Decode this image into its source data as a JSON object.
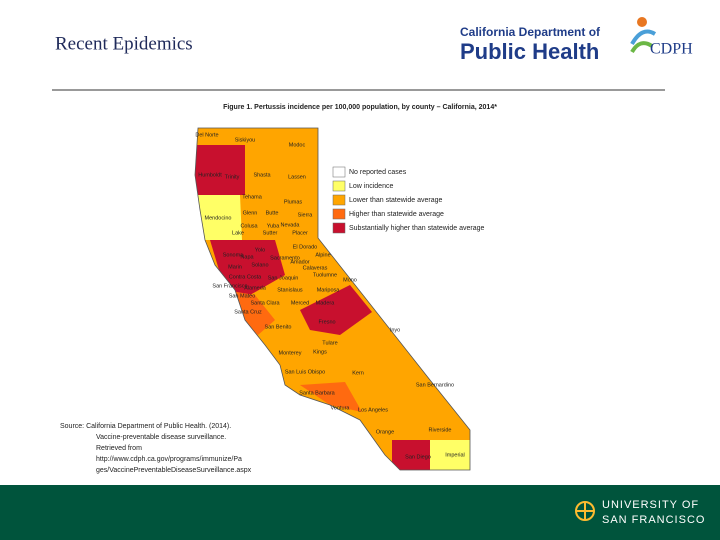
{
  "header": {
    "title": "Recent Epidemics",
    "logo_line1": "California Department of",
    "logo_line2": "Public Health",
    "logo_mark": "CDPH"
  },
  "figure": {
    "title": "Figure 1. Pertussis incidence per 100,000 population, by county – California, 2014*",
    "legend": [
      {
        "label": "No reported cases",
        "color": "#ffffff"
      },
      {
        "label": "Low incidence",
        "color": "#ffff66"
      },
      {
        "label": "Lower than statewide average",
        "color": "#ffa500"
      },
      {
        "label": "Higher than statewide average",
        "color": "#ff6a10"
      },
      {
        "label": "Substantially higher than statewide average",
        "color": "#c8102e"
      }
    ],
    "counties": [
      "Del Norte",
      "Siskiyou",
      "Modoc",
      "Humboldt",
      "Trinity",
      "Shasta",
      "Lassen",
      "Tehama",
      "Plumas",
      "Mendocino",
      "Glenn",
      "Butte",
      "Sierra",
      "Nevada",
      "Lake",
      "Colusa",
      "Yuba",
      "Sutter",
      "Placer",
      "El Dorado",
      "Alpine",
      "Sonoma",
      "Napa",
      "Yolo",
      "Sacramento",
      "Amador",
      "Calaveras",
      "Marin",
      "Solano",
      "Contra Costa",
      "San Joaquin",
      "Tuolumne",
      "Mono",
      "San Francisco",
      "Alameda",
      "Stanislaus",
      "Mariposa",
      "San Mateo",
      "Santa Clara",
      "Merced",
      "Madera",
      "Santa Cruz",
      "San Benito",
      "Fresno",
      "Inyo",
      "Tulare",
      "Monterey",
      "Kings",
      "San Luis Obispo",
      "Kern",
      "San Bernardino",
      "Santa Barbara",
      "Ventura",
      "Los Angeles",
      "Riverside",
      "Orange",
      "San Diego",
      "Imperial"
    ]
  },
  "source": [
    "Source: California Department of Public Health. (2014).",
    "Vaccine-preventable disease surveillance.",
    "Retrieved from",
    "http://www.cdph.ca.gov/programs/immunize/Pa",
    "ges/VaccinePreventableDiseaseSurveillance.aspx"
  ],
  "footer": {
    "line1": "UNIVERSITY OF",
    "line2": "SAN FRANCISCO"
  }
}
